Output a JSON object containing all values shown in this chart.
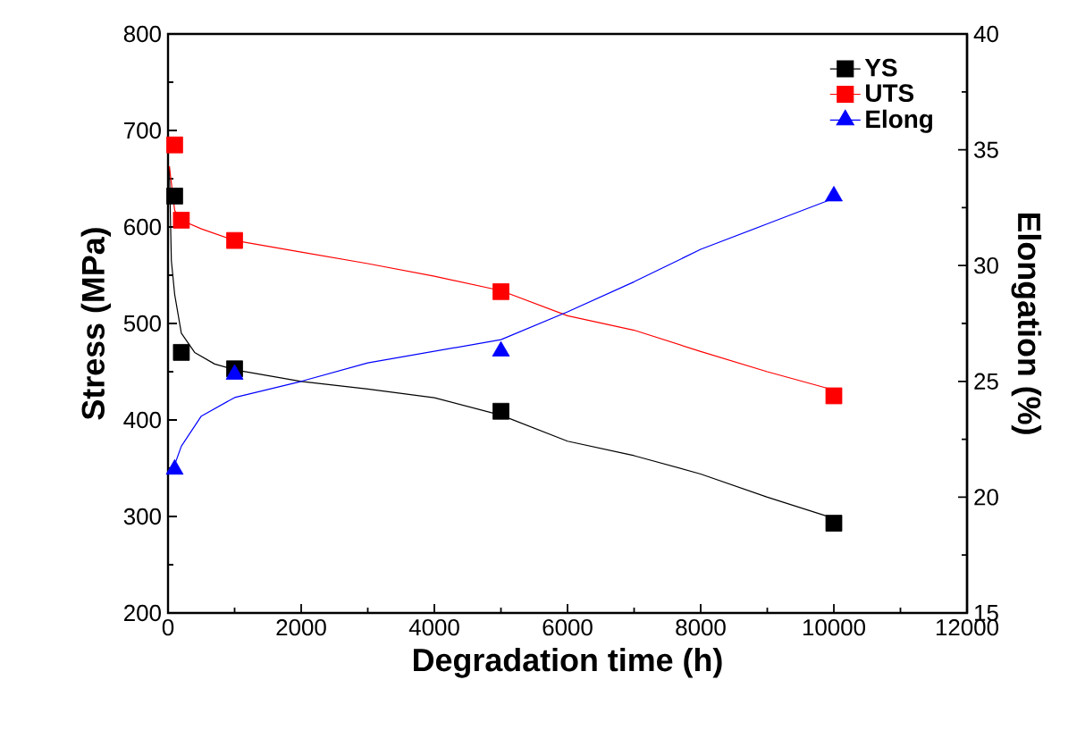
{
  "chart_data": {
    "type": "scatter",
    "xlabel": "Degradation time (h)",
    "ylabel": "Stress (MPa)",
    "y2label": "Elongation (%)",
    "xlim": [
      0,
      12000
    ],
    "xticks": [
      0,
      2000,
      4000,
      6000,
      8000,
      10000,
      12000
    ],
    "ylim": [
      200,
      800
    ],
    "yticks": [
      200,
      300,
      400,
      500,
      600,
      700,
      800
    ],
    "y2lim": [
      15,
      40
    ],
    "y2ticks": [
      15,
      20,
      25,
      30,
      35,
      40
    ],
    "legend": "top right",
    "series": [
      {
        "name": "YS",
        "marker": "square",
        "color": "#000000",
        "x": [
          100,
          200,
          1000,
          5000,
          10000
        ],
        "values": [
          632,
          470,
          453,
          409,
          293
        ]
      },
      {
        "name": "UTS",
        "marker": "square",
        "color": "#ff0000",
        "x": [
          100,
          200,
          1000,
          5000,
          10000
        ],
        "values": [
          685,
          607,
          586,
          533,
          425
        ]
      },
      {
        "name": "Elong",
        "marker": "triangle",
        "axis": "y2",
        "color": "#0000ff",
        "x": [
          100,
          1000,
          5000,
          10000
        ],
        "values": [
          21.2,
          25.3,
          26.3,
          33.0
        ]
      },
      {
        "type": "line",
        "color": "#000000",
        "x": [
          20,
          50,
          100,
          200,
          400,
          700,
          1000,
          2000,
          3000,
          4000,
          5000,
          6000,
          7000,
          8000,
          9000,
          10000
        ],
        "values": [
          663,
          565,
          530,
          490,
          470,
          458,
          452,
          440,
          432,
          423,
          405,
          378,
          363,
          344,
          320,
          298
        ]
      },
      {
        "type": "line",
        "color": "#ff0000",
        "x": [
          20,
          100,
          200,
          500,
          1000,
          2000,
          3000,
          4000,
          5000,
          6000,
          7000,
          8000,
          9000,
          10000
        ],
        "values": [
          663,
          617,
          607,
          598,
          586,
          574,
          562,
          549,
          534,
          508,
          493,
          471,
          450,
          431
        ]
      },
      {
        "type": "line",
        "axis": "y2",
        "color": "#0000ff",
        "x": [
          100,
          200,
          500,
          1000,
          2000,
          3000,
          4000,
          5000,
          6000,
          7000,
          8000,
          9000,
          10000
        ],
        "values": [
          21.4,
          22.2,
          23.5,
          24.3,
          25.0,
          25.8,
          26.3,
          26.8,
          28.0,
          29.3,
          30.7,
          31.8,
          32.9
        ]
      }
    ]
  }
}
